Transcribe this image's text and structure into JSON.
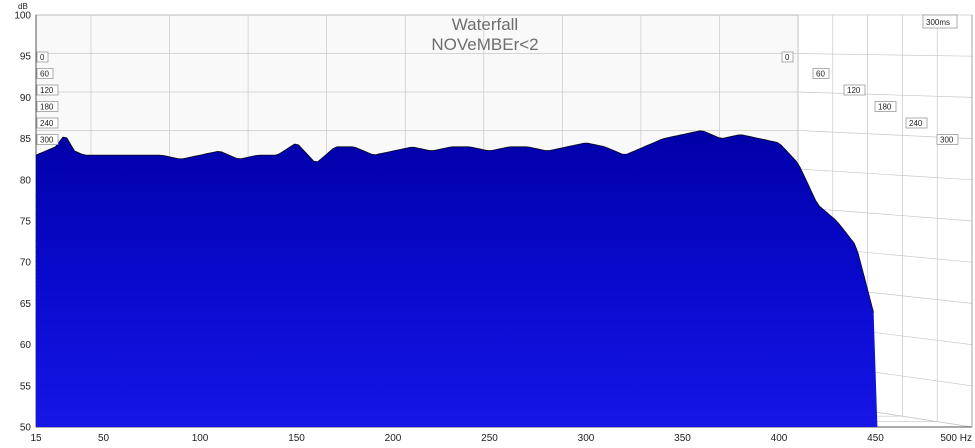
{
  "chart_data": {
    "type": "waterfall",
    "title": "Waterfall",
    "subtitle": "NOVeMBEr<2",
    "ylabel": "dB",
    "xunit": "Hz",
    "ylim": [
      50,
      100
    ],
    "xlim": [
      15,
      500
    ],
    "y_ticks": [
      50,
      55,
      60,
      65,
      70,
      75,
      80,
      85,
      90,
      95,
      100
    ],
    "x_ticks": [
      {
        "value": 15,
        "label": "15"
      },
      {
        "value": 50,
        "label": "50"
      },
      {
        "value": 100,
        "label": "100"
      },
      {
        "value": 150,
        "label": "150"
      },
      {
        "value": 200,
        "label": "200"
      },
      {
        "value": 250,
        "label": "250"
      },
      {
        "value": 300,
        "label": "300"
      },
      {
        "value": 350,
        "label": "350"
      },
      {
        "value": 400,
        "label": "400"
      },
      {
        "value": 450,
        "label": "450"
      },
      {
        "value": 500,
        "label": "500 Hz"
      }
    ],
    "time_axis_label": "300ms",
    "time_slices_ms": [
      "0",
      "60",
      "120",
      "180",
      "240",
      "300"
    ],
    "front_slice_response_db": {
      "hz": [
        15,
        20,
        25,
        30,
        35,
        40,
        50,
        60,
        70,
        80,
        90,
        100,
        110,
        120,
        130,
        140,
        150,
        160,
        170,
        180,
        190,
        200,
        210,
        220,
        230,
        240,
        250,
        260,
        270,
        280,
        290,
        300,
        310,
        320,
        330,
        340,
        350,
        360,
        370,
        380,
        390,
        400,
        410,
        420,
        430,
        440,
        450
      ],
      "db": [
        83,
        83.5,
        84,
        85.5,
        83.5,
        83,
        83,
        83,
        83,
        83,
        82.5,
        83,
        83.5,
        82.5,
        83,
        83,
        84.5,
        82,
        84,
        84,
        83,
        83.5,
        84,
        83.5,
        84,
        84,
        83.5,
        84,
        84,
        83.5,
        84,
        84.5,
        84,
        83,
        84,
        85,
        85.5,
        86,
        85,
        85.5,
        85,
        84.5,
        82,
        77,
        75,
        72,
        63
      ]
    },
    "floor_db": 55,
    "colors": {
      "surface": "#0a0ad8",
      "contour": "#000000",
      "grid": "#c8c8c8"
    },
    "grid": true
  }
}
